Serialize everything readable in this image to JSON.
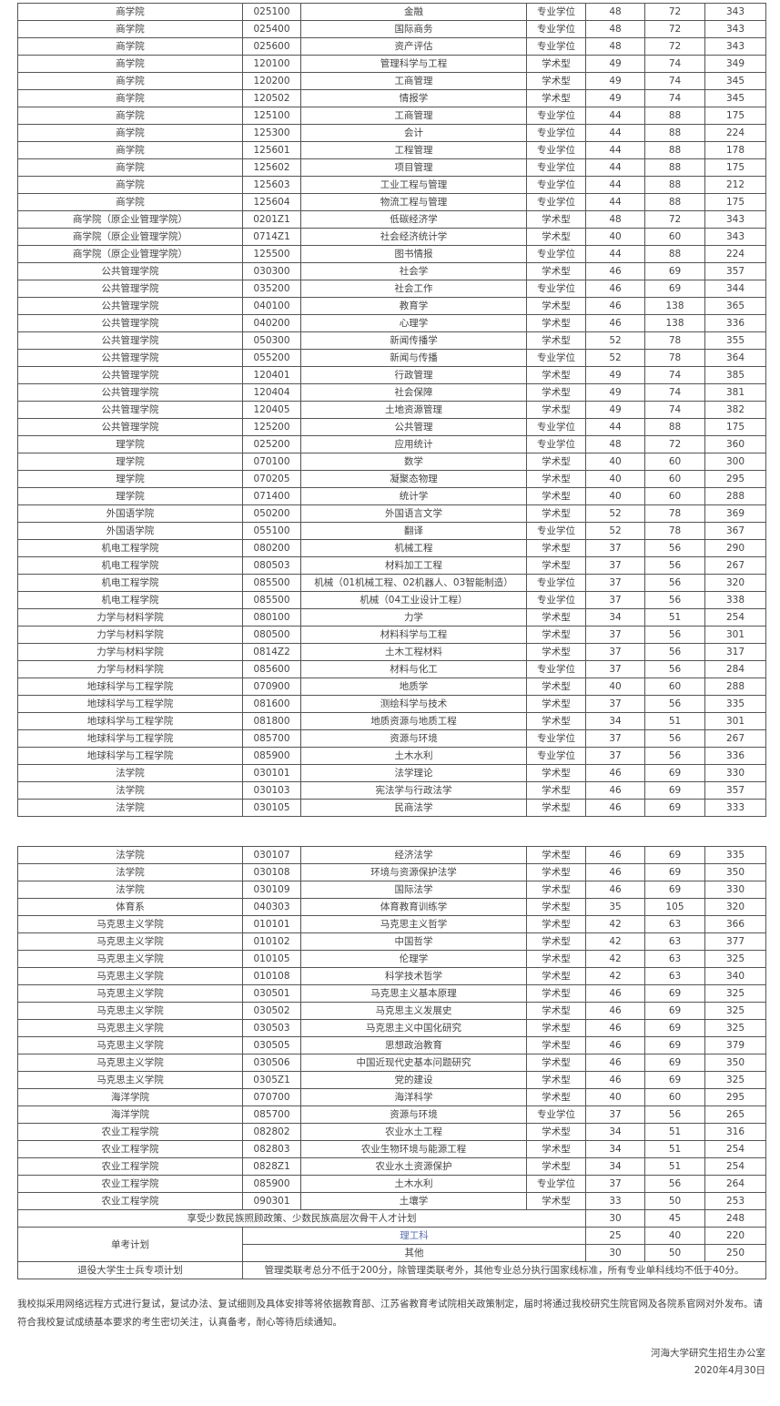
{
  "table1": [
    [
      "商学院",
      "025100",
      "金融",
      "专业学位",
      "48",
      "72",
      "343"
    ],
    [
      "商学院",
      "025400",
      "国际商务",
      "专业学位",
      "48",
      "72",
      "343"
    ],
    [
      "商学院",
      "025600",
      "资产评估",
      "专业学位",
      "48",
      "72",
      "343"
    ],
    [
      "商学院",
      "120100",
      "管理科学与工程",
      "学术型",
      "49",
      "74",
      "349"
    ],
    [
      "商学院",
      "120200",
      "工商管理",
      "学术型",
      "49",
      "74",
      "345"
    ],
    [
      "商学院",
      "120502",
      "情报学",
      "学术型",
      "49",
      "74",
      "345"
    ],
    [
      "商学院",
      "125100",
      "工商管理",
      "专业学位",
      "44",
      "88",
      "175"
    ],
    [
      "商学院",
      "125300",
      "会计",
      "专业学位",
      "44",
      "88",
      "224"
    ],
    [
      "商学院",
      "125601",
      "工程管理",
      "专业学位",
      "44",
      "88",
      "178"
    ],
    [
      "商学院",
      "125602",
      "项目管理",
      "专业学位",
      "44",
      "88",
      "175"
    ],
    [
      "商学院",
      "125603",
      "工业工程与管理",
      "专业学位",
      "44",
      "88",
      "212"
    ],
    [
      "商学院",
      "125604",
      "物流工程与管理",
      "专业学位",
      "44",
      "88",
      "175"
    ],
    [
      "商学院（原企业管理学院）",
      "0201Z1",
      "低碳经济学",
      "学术型",
      "48",
      "72",
      "343"
    ],
    [
      "商学院（原企业管理学院）",
      "0714Z1",
      "社会经济统计学",
      "学术型",
      "40",
      "60",
      "343"
    ],
    [
      "商学院（原企业管理学院）",
      "125500",
      "图书情报",
      "专业学位",
      "44",
      "88",
      "224"
    ],
    [
      "公共管理学院",
      "030300",
      "社会学",
      "学术型",
      "46",
      "69",
      "357"
    ],
    [
      "公共管理学院",
      "035200",
      "社会工作",
      "专业学位",
      "46",
      "69",
      "344"
    ],
    [
      "公共管理学院",
      "040100",
      "教育学",
      "学术型",
      "46",
      "138",
      "365"
    ],
    [
      "公共管理学院",
      "040200",
      "心理学",
      "学术型",
      "46",
      "138",
      "336"
    ],
    [
      "公共管理学院",
      "050300",
      "新闻传播学",
      "学术型",
      "52",
      "78",
      "355"
    ],
    [
      "公共管理学院",
      "055200",
      "新闻与传播",
      "专业学位",
      "52",
      "78",
      "364"
    ],
    [
      "公共管理学院",
      "120401",
      "行政管理",
      "学术型",
      "49",
      "74",
      "385"
    ],
    [
      "公共管理学院",
      "120404",
      "社会保障",
      "学术型",
      "49",
      "74",
      "381"
    ],
    [
      "公共管理学院",
      "120405",
      "土地资源管理",
      "学术型",
      "49",
      "74",
      "382"
    ],
    [
      "公共管理学院",
      "125200",
      "公共管理",
      "专业学位",
      "44",
      "88",
      "175"
    ],
    [
      "理学院",
      "025200",
      "应用统计",
      "专业学位",
      "48",
      "72",
      "360"
    ],
    [
      "理学院",
      "070100",
      "数学",
      "学术型",
      "40",
      "60",
      "300"
    ],
    [
      "理学院",
      "070205",
      "凝聚态物理",
      "学术型",
      "40",
      "60",
      "295"
    ],
    [
      "理学院",
      "071400",
      "统计学",
      "学术型",
      "40",
      "60",
      "288"
    ],
    [
      "外国语学院",
      "050200",
      "外国语言文学",
      "学术型",
      "52",
      "78",
      "369"
    ],
    [
      "外国语学院",
      "055100",
      "翻译",
      "专业学位",
      "52",
      "78",
      "367"
    ],
    [
      "机电工程学院",
      "080200",
      "机械工程",
      "学术型",
      "37",
      "56",
      "290"
    ],
    [
      "机电工程学院",
      "080503",
      "材料加工工程",
      "学术型",
      "37",
      "56",
      "267"
    ],
    [
      "机电工程学院",
      "085500",
      "机械（01机械工程、02机器人、03智能制造）",
      "专业学位",
      "37",
      "56",
      "320"
    ],
    [
      "机电工程学院",
      "085500",
      "机械（04工业设计工程）",
      "专业学位",
      "37",
      "56",
      "338"
    ],
    [
      "力学与材料学院",
      "080100",
      "力学",
      "学术型",
      "34",
      "51",
      "254"
    ],
    [
      "力学与材料学院",
      "080500",
      "材料科学与工程",
      "学术型",
      "37",
      "56",
      "301"
    ],
    [
      "力学与材料学院",
      "0814Z2",
      "土木工程材料",
      "学术型",
      "37",
      "56",
      "317"
    ],
    [
      "力学与材料学院",
      "085600",
      "材料与化工",
      "专业学位",
      "37",
      "56",
      "284"
    ],
    [
      "地球科学与工程学院",
      "070900",
      "地质学",
      "学术型",
      "40",
      "60",
      "288"
    ],
    [
      "地球科学与工程学院",
      "081600",
      "测绘科学与技术",
      "学术型",
      "37",
      "56",
      "335"
    ],
    [
      "地球科学与工程学院",
      "081800",
      "地质资源与地质工程",
      "学术型",
      "34",
      "51",
      "301"
    ],
    [
      "地球科学与工程学院",
      "085700",
      "资源与环境",
      "专业学位",
      "37",
      "56",
      "267"
    ],
    [
      "地球科学与工程学院",
      "085900",
      "土木水利",
      "专业学位",
      "37",
      "56",
      "336"
    ],
    [
      "法学院",
      "030101",
      "法学理论",
      "学术型",
      "46",
      "69",
      "330"
    ],
    [
      "法学院",
      "030103",
      "宪法学与行政法学",
      "学术型",
      "46",
      "69",
      "357"
    ],
    [
      "法学院",
      "030105",
      "民商法学",
      "学术型",
      "46",
      "69",
      "333"
    ]
  ],
  "table2": [
    [
      "法学院",
      "030107",
      "经济法学",
      "学术型",
      "46",
      "69",
      "335"
    ],
    [
      "法学院",
      "030108",
      "环境与资源保护法学",
      "学术型",
      "46",
      "69",
      "350"
    ],
    [
      "法学院",
      "030109",
      "国际法学",
      "学术型",
      "46",
      "69",
      "330"
    ],
    [
      "体育系",
      "040303",
      "体育教育训练学",
      "学术型",
      "35",
      "105",
      "320"
    ],
    [
      "马克思主义学院",
      "010101",
      "马克思主义哲学",
      "学术型",
      "42",
      "63",
      "366"
    ],
    [
      "马克思主义学院",
      "010102",
      "中国哲学",
      "学术型",
      "42",
      "63",
      "377"
    ],
    [
      "马克思主义学院",
      "010105",
      "伦理学",
      "学术型",
      "42",
      "63",
      "325"
    ],
    [
      "马克思主义学院",
      "010108",
      "科学技术哲学",
      "学术型",
      "42",
      "63",
      "340"
    ],
    [
      "马克思主义学院",
      "030501",
      "马克思主义基本原理",
      "学术型",
      "46",
      "69",
      "325"
    ],
    [
      "马克思主义学院",
      "030502",
      "马克思主义发展史",
      "学术型",
      "46",
      "69",
      "325"
    ],
    [
      "马克思主义学院",
      "030503",
      "马克思主义中国化研究",
      "学术型",
      "46",
      "69",
      "325"
    ],
    [
      "马克思主义学院",
      "030505",
      "思想政治教育",
      "学术型",
      "46",
      "69",
      "379"
    ],
    [
      "马克思主义学院",
      "030506",
      "中国近现代史基本问题研究",
      "学术型",
      "46",
      "69",
      "350"
    ],
    [
      "马克思主义学院",
      "0305Z1",
      "党的建设",
      "学术型",
      "46",
      "69",
      "325"
    ],
    [
      "海洋学院",
      "070700",
      "海洋科学",
      "学术型",
      "40",
      "60",
      "295"
    ],
    [
      "海洋学院",
      "085700",
      "资源与环境",
      "专业学位",
      "37",
      "56",
      "265"
    ],
    [
      "农业工程学院",
      "082802",
      "农业水土工程",
      "学术型",
      "34",
      "51",
      "316"
    ],
    [
      "农业工程学院",
      "082803",
      "农业生物环境与能源工程",
      "学术型",
      "34",
      "51",
      "254"
    ],
    [
      "农业工程学院",
      "0828Z1",
      "农业水土资源保护",
      "学术型",
      "34",
      "51",
      "254"
    ],
    [
      "农业工程学院",
      "085900",
      "土木水利",
      "专业学位",
      "37",
      "56",
      "264"
    ],
    [
      "农业工程学院",
      "090301",
      "土壤学",
      "学术型",
      "33",
      "50",
      "253"
    ]
  ],
  "special": {
    "minority": {
      "label": "享受少数民族照顾政策、少数民族高层次骨干人才计划",
      "scores": [
        "30",
        "45",
        "248"
      ]
    },
    "single_exam": {
      "label": "单考计划",
      "rows": [
        {
          "label": "理工科",
          "scores": [
            "25",
            "40",
            "220"
          ]
        },
        {
          "label": "其他",
          "scores": [
            "30",
            "50",
            "250"
          ]
        }
      ]
    },
    "veterans": {
      "label": "退役大学生士兵专项计划",
      "text": "管理类联考总分不低于200分，除管理类联考外，其他专业总分执行国家线标准，所有专业单科线均不低于40分。"
    }
  },
  "notice": "我校拟采用网络远程方式进行复试，复试办法、复试细则及具体安排等将依据教育部、江苏省教育考试院相关政策制定，届时将通过我校研究生院官网及各院系官网对外发布。请符合我校复试成绩基本要求的考生密切关注，认真备考，耐心等待后续通知。",
  "signature": {
    "office": "河海大学研究生招生办公室",
    "date": "2020年4月30日"
  },
  "colors": {
    "text": "#444444",
    "border": "#555555",
    "link": "#5a6fb0"
  }
}
